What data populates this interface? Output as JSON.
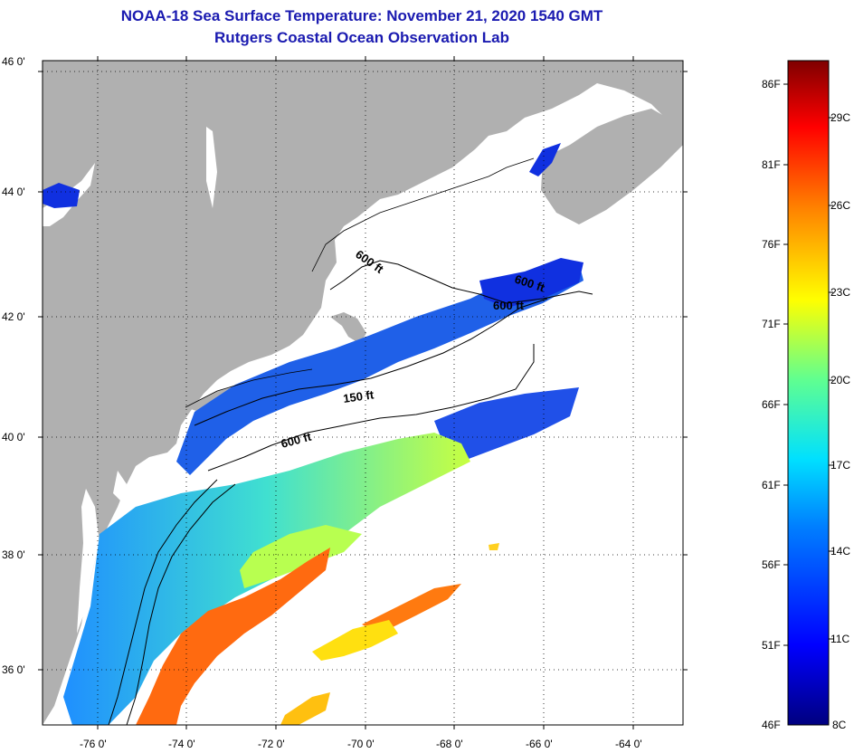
{
  "titles": {
    "line1": "NOAA-18 Sea Surface Temperature:  November 21, 2020 1540 GMT",
    "line2": "Rutgers Coastal Ocean Observation Lab"
  },
  "map": {
    "lon_labels": [
      "-76 0'",
      "-74 0'",
      "-72 0'",
      "-70 0'",
      "-68 0'",
      "-66 0'",
      "-64 0'"
    ],
    "lat_labels": [
      "46 0'",
      "44 0'",
      "42 0'",
      "40 0'",
      "38 0'",
      "36 0'"
    ],
    "contour_labels": [
      "600 ft",
      "600 ft",
      "600 ft",
      "150 ft",
      "600 ft"
    ]
  },
  "colorbar": {
    "fahrenheit_labels": [
      "86F",
      "81F",
      "76F",
      "71F",
      "66F",
      "61F",
      "56F",
      "51F",
      "46F"
    ],
    "celsius_labels": [
      "29C",
      "26C",
      "23C",
      "20C",
      "17C",
      "14C",
      "11C",
      "8C"
    ]
  },
  "colors": {
    "title": "#1a1ab0",
    "land": "#b0b0b0",
    "cloud": "#ffffff"
  }
}
